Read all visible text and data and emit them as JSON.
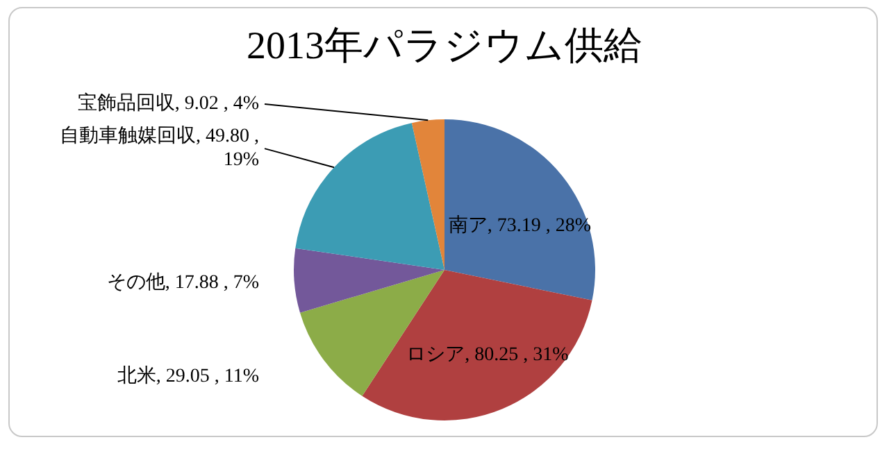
{
  "chart_data": {
    "type": "pie",
    "title": "2013年パラジウム供給",
    "categories": [
      "南ア",
      "ロシア",
      "北米",
      "その他",
      "自動車触媒回収",
      "宝飾品回収"
    ],
    "values": [
      73.19,
      80.25,
      29.05,
      17.88,
      49.8,
      9.02
    ],
    "colors": [
      "#4a72a8",
      "#b04040",
      "#8cac48",
      "#73589a",
      "#3c9cb4",
      "#e2853a"
    ],
    "value_labels": [
      ", 73.19 , 28%",
      ", 80.25 , 31%",
      ", 29.05 , 11%",
      ", 17.88 , 7%",
      ", 49.80 , 19%",
      ", 9.02 , 4%"
    ],
    "data_labels": true,
    "legend": false
  }
}
